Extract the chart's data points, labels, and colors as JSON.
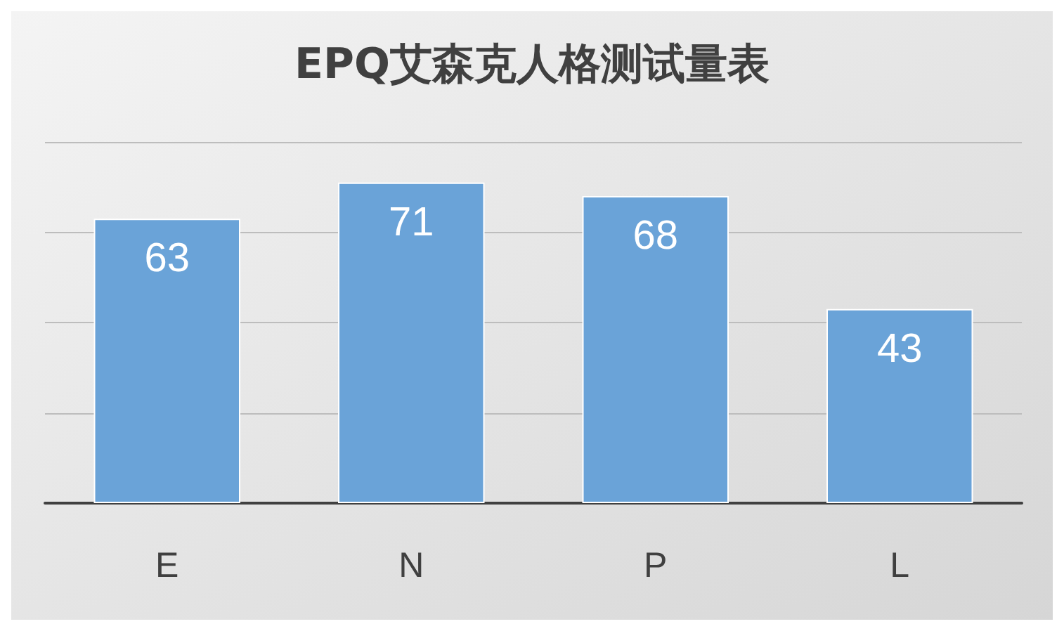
{
  "chart_data": {
    "type": "bar",
    "title": "EPQ艾森克人格测试量表",
    "categories": [
      "E",
      "N",
      "P",
      "L"
    ],
    "values": [
      63,
      71,
      68,
      43
    ],
    "color": "#6aa3d8",
    "ylim": [
      0,
      80
    ],
    "yticks": [
      0,
      20,
      40,
      60,
      80
    ],
    "grid": "y",
    "tick_labels": "x",
    "data_labels": true
  }
}
